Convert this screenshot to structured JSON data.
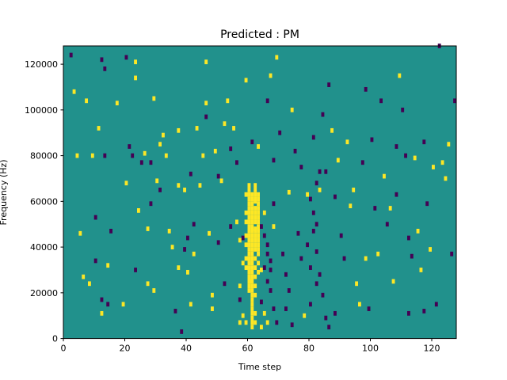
{
  "chart_data": {
    "type": "heatmap",
    "title": "Predicted : PM",
    "xlabel": "Time step",
    "ylabel": "Frequency (Hz)",
    "xlim": [
      0,
      128
    ],
    "ylim": [
      0,
      128000
    ],
    "x_ticks": [
      0,
      20,
      40,
      60,
      80,
      100,
      120
    ],
    "y_ticks": [
      0,
      20000,
      40000,
      60000,
      80000,
      100000,
      120000
    ],
    "grid": false,
    "legend": "none",
    "colors": {
      "background": "#21918c",
      "high": "#fde725",
      "low": "#440154"
    },
    "value_scale": {
      "low": -1,
      "background": 0,
      "high": 1
    },
    "cell_height_hz": 2000,
    "cells": [
      [
        2,
        123000,
        -1
      ],
      [
        3,
        107000,
        1
      ],
      [
        4,
        79000,
        1
      ],
      [
        5,
        45000,
        1
      ],
      [
        6,
        26000,
        1
      ],
      [
        7,
        103000,
        1
      ],
      [
        8,
        23000,
        1
      ],
      [
        9,
        79000,
        1
      ],
      [
        10,
        52000,
        -1
      ],
      [
        10,
        33000,
        -1
      ],
      [
        11,
        91000,
        1
      ],
      [
        12,
        121000,
        -1
      ],
      [
        13,
        117000,
        -1
      ],
      [
        12,
        16000,
        -1
      ],
      [
        12,
        10000,
        1
      ],
      [
        13,
        79000,
        -1
      ],
      [
        14,
        31000,
        1
      ],
      [
        14,
        14000,
        -1
      ],
      [
        15,
        46000,
        -1
      ],
      [
        17,
        102000,
        1
      ],
      [
        19,
        14000,
        1
      ],
      [
        20,
        122000,
        -1
      ],
      [
        20,
        67000,
        1
      ],
      [
        21,
        83000,
        -1
      ],
      [
        22,
        79000,
        -1
      ],
      [
        23,
        29000,
        -1
      ],
      [
        23,
        120000,
        1
      ],
      [
        23,
        113000,
        1
      ],
      [
        24,
        55000,
        1
      ],
      [
        25,
        76000,
        -1
      ],
      [
        26,
        80000,
        1
      ],
      [
        27,
        47000,
        1
      ],
      [
        27,
        23000,
        1
      ],
      [
        28,
        58000,
        -1
      ],
      [
        28,
        76000,
        -1
      ],
      [
        29,
        104000,
        1
      ],
      [
        29,
        20000,
        1
      ],
      [
        30,
        68000,
        1
      ],
      [
        31,
        64000,
        -1
      ],
      [
        31,
        84000,
        1
      ],
      [
        32,
        88000,
        1
      ],
      [
        33,
        79000,
        1
      ],
      [
        34,
        46000,
        1
      ],
      [
        35,
        39000,
        1
      ],
      [
        36,
        11000,
        -1
      ],
      [
        37,
        30000,
        1
      ],
      [
        37,
        66000,
        1
      ],
      [
        37,
        90000,
        1
      ],
      [
        38,
        2000,
        -1
      ],
      [
        39,
        64000,
        1
      ],
      [
        39,
        38000,
        -1
      ],
      [
        40,
        43000,
        -1
      ],
      [
        40,
        28000,
        1
      ],
      [
        41,
        71000,
        -1
      ],
      [
        41,
        14000,
        1
      ],
      [
        42,
        49000,
        -1
      ],
      [
        42,
        36000,
        1
      ],
      [
        43,
        91000,
        1
      ],
      [
        44,
        66000,
        1
      ],
      [
        45,
        79000,
        1
      ],
      [
        46,
        120000,
        1
      ],
      [
        46,
        102000,
        1
      ],
      [
        46,
        96000,
        -1
      ],
      [
        47,
        45000,
        1
      ],
      [
        48,
        18000,
        1
      ],
      [
        48,
        12000,
        1
      ],
      [
        49,
        81000,
        1
      ],
      [
        50,
        70000,
        -1
      ],
      [
        50,
        41000,
        -1
      ],
      [
        51,
        68000,
        1
      ],
      [
        52,
        93000,
        1
      ],
      [
        52,
        23000,
        -1
      ],
      [
        53,
        103000,
        1
      ],
      [
        54,
        82000,
        -1
      ],
      [
        54,
        48000,
        -1
      ],
      [
        55,
        91000,
        1
      ],
      [
        56,
        76000,
        -1
      ],
      [
        57,
        22000,
        1
      ],
      [
        57,
        16000,
        -1
      ],
      [
        58,
        43000,
        -1
      ],
      [
        59,
        112000,
        1
      ],
      [
        59,
        6000,
        1
      ],
      [
        60,
        24000,
        1
      ],
      [
        60,
        36000,
        -1
      ],
      [
        61,
        85000,
        -1
      ],
      [
        62,
        59000,
        1
      ],
      [
        62,
        47000,
        1
      ],
      [
        63,
        83000,
        1
      ],
      [
        63,
        38000,
        1
      ],
      [
        64,
        29000,
        1
      ],
      [
        64,
        15000,
        -1
      ],
      [
        65,
        54000,
        1
      ],
      [
        66,
        103000,
        -1
      ],
      [
        67,
        114000,
        1
      ],
      [
        67,
        29000,
        -1
      ],
      [
        68,
        77000,
        -1
      ],
      [
        68,
        58000,
        -1
      ],
      [
        68,
        48000,
        1
      ],
      [
        69,
        122000,
        1
      ],
      [
        70,
        89000,
        -1
      ],
      [
        71,
        36000,
        -1
      ],
      [
        72,
        27000,
        -1
      ],
      [
        72,
        12000,
        -1
      ],
      [
        73,
        63000,
        1
      ],
      [
        73,
        20000,
        -1
      ],
      [
        74,
        99000,
        1
      ],
      [
        74,
        5000,
        -1
      ],
      [
        75,
        81000,
        -1
      ],
      [
        76,
        45000,
        -1
      ],
      [
        77,
        74000,
        -1
      ],
      [
        77,
        34000,
        -1
      ],
      [
        78,
        9000,
        1
      ],
      [
        79,
        62000,
        1
      ],
      [
        80,
        14000,
        -1
      ],
      [
        81,
        87000,
        -1
      ],
      [
        82,
        49000,
        -1
      ],
      [
        82,
        23000,
        -1
      ],
      [
        83,
        64000,
        1
      ],
      [
        84,
        97000,
        -1
      ],
      [
        85,
        72000,
        -1
      ],
      [
        86,
        110000,
        -1
      ],
      [
        87,
        90000,
        1
      ],
      [
        88,
        61000,
        -1
      ],
      [
        88,
        10000,
        -1
      ],
      [
        89,
        77000,
        1
      ],
      [
        90,
        44000,
        -1
      ],
      [
        91,
        34000,
        -1
      ],
      [
        92,
        85000,
        1
      ],
      [
        93,
        57000,
        1
      ],
      [
        94,
        64000,
        1
      ],
      [
        95,
        23000,
        1
      ],
      [
        96,
        14000,
        1
      ],
      [
        97,
        76000,
        -1
      ],
      [
        98,
        108000,
        -1
      ],
      [
        98,
        34000,
        1
      ],
      [
        99,
        12000,
        -1
      ],
      [
        100,
        86000,
        -1
      ],
      [
        101,
        56000,
        -1
      ],
      [
        102,
        36000,
        1
      ],
      [
        103,
        103000,
        -1
      ],
      [
        104,
        70000,
        1
      ],
      [
        105,
        49000,
        -1
      ],
      [
        106,
        56000,
        1
      ],
      [
        107,
        24000,
        1
      ],
      [
        108,
        83000,
        -1
      ],
      [
        108,
        62000,
        -1
      ],
      [
        109,
        114000,
        1
      ],
      [
        110,
        99000,
        -1
      ],
      [
        111,
        79000,
        -1
      ],
      [
        112,
        43000,
        -1
      ],
      [
        112,
        10000,
        -1
      ],
      [
        113,
        35000,
        -1
      ],
      [
        114,
        78000,
        1
      ],
      [
        115,
        46000,
        1
      ],
      [
        116,
        29000,
        1
      ],
      [
        117,
        85000,
        -1
      ],
      [
        117,
        11000,
        -1
      ],
      [
        118,
        58000,
        -1
      ],
      [
        119,
        38000,
        1
      ],
      [
        120,
        74000,
        1
      ],
      [
        121,
        14000,
        -1
      ],
      [
        122,
        127000,
        -1
      ],
      [
        123,
        76000,
        1
      ],
      [
        124,
        69000,
        1
      ],
      [
        125,
        84000,
        1
      ],
      [
        126,
        36000,
        -1
      ],
      [
        127,
        103000,
        -1
      ],
      [
        60,
        66000,
        1
      ],
      [
        60,
        64000,
        1
      ],
      [
        60,
        62000,
        1
      ],
      [
        60,
        60000,
        1
      ],
      [
        60,
        58000,
        1
      ],
      [
        60,
        56000,
        1
      ],
      [
        60,
        54000,
        1
      ],
      [
        60,
        52000,
        1
      ],
      [
        60,
        50000,
        1
      ],
      [
        60,
        48000,
        1
      ],
      [
        60,
        46000,
        1
      ],
      [
        60,
        44000,
        1
      ],
      [
        60,
        42000,
        1
      ],
      [
        60,
        40000,
        1
      ],
      [
        60,
        38000,
        1
      ],
      [
        60,
        36000,
        1
      ],
      [
        60,
        34000,
        1
      ],
      [
        60,
        32000,
        1
      ],
      [
        60,
        30000,
        1
      ],
      [
        60,
        28000,
        1
      ],
      [
        60,
        26000,
        1
      ],
      [
        60,
        24000,
        1
      ],
      [
        60,
        22000,
        1
      ],
      [
        60,
        20000,
        1
      ],
      [
        61,
        62000,
        1
      ],
      [
        61,
        60000,
        1
      ],
      [
        61,
        58000,
        1
      ],
      [
        61,
        56000,
        1
      ],
      [
        61,
        54000,
        1
      ],
      [
        61,
        52000,
        1
      ],
      [
        61,
        50000,
        1
      ],
      [
        61,
        48000,
        1
      ],
      [
        61,
        46000,
        1
      ],
      [
        61,
        44000,
        1
      ],
      [
        61,
        42000,
        1
      ],
      [
        61,
        40000,
        1
      ],
      [
        61,
        38000,
        1
      ],
      [
        61,
        36000,
        1
      ],
      [
        61,
        34000,
        1
      ],
      [
        61,
        32000,
        1
      ],
      [
        61,
        30000,
        1
      ],
      [
        61,
        28000,
        1
      ],
      [
        61,
        26000,
        1
      ],
      [
        61,
        24000,
        1
      ],
      [
        61,
        22000,
        1
      ],
      [
        61,
        20000,
        1
      ],
      [
        61,
        18000,
        1
      ],
      [
        61,
        16000,
        1
      ],
      [
        61,
        14000,
        1
      ],
      [
        61,
        12000,
        1
      ],
      [
        61,
        10000,
        1
      ],
      [
        61,
        8000,
        1
      ],
      [
        61,
        6000,
        1
      ],
      [
        61,
        4000,
        1
      ],
      [
        62,
        66000,
        1
      ],
      [
        62,
        64000,
        1
      ],
      [
        62,
        62000,
        1
      ],
      [
        62,
        60000,
        1
      ],
      [
        62,
        56000,
        1
      ],
      [
        62,
        54000,
        1
      ],
      [
        62,
        52000,
        1
      ],
      [
        62,
        50000,
        1
      ],
      [
        62,
        46000,
        1
      ],
      [
        62,
        44000,
        1
      ],
      [
        62,
        42000,
        1
      ],
      [
        62,
        40000,
        1
      ],
      [
        62,
        38000,
        1
      ],
      [
        62,
        34000,
        1
      ],
      [
        62,
        30000,
        1
      ],
      [
        62,
        26000,
        1
      ],
      [
        62,
        22000,
        1
      ],
      [
        62,
        18000,
        1
      ],
      [
        62,
        10000,
        1
      ],
      [
        62,
        6000,
        1
      ],
      [
        63,
        62000,
        1
      ],
      [
        63,
        60000,
        1
      ],
      [
        63,
        58000,
        1
      ],
      [
        63,
        56000,
        1
      ],
      [
        63,
        54000,
        1
      ],
      [
        63,
        52000,
        1
      ],
      [
        63,
        50000,
        1
      ],
      [
        63,
        48000,
        1
      ],
      [
        63,
        46000,
        1
      ],
      [
        63,
        44000,
        1
      ],
      [
        63,
        42000,
        1
      ],
      [
        63,
        40000,
        1
      ],
      [
        63,
        36000,
        1
      ],
      [
        63,
        32000,
        1
      ],
      [
        63,
        28000,
        1
      ],
      [
        59,
        62000,
        1
      ],
      [
        59,
        54000,
        1
      ],
      [
        59,
        50000,
        1
      ],
      [
        59,
        44000,
        1
      ],
      [
        59,
        40000,
        1
      ],
      [
        59,
        34000,
        1
      ],
      [
        59,
        30000,
        1
      ],
      [
        56,
        50000,
        1
      ],
      [
        57,
        42000,
        1
      ],
      [
        58,
        32000,
        1
      ],
      [
        57,
        6000,
        1
      ],
      [
        58,
        9000,
        1
      ],
      [
        64,
        48000,
        -1
      ],
      [
        65,
        44000,
        -1
      ],
      [
        66,
        40000,
        -1
      ],
      [
        66,
        36000,
        -1
      ],
      [
        67,
        33000,
        -1
      ],
      [
        65,
        30000,
        -1
      ],
      [
        66,
        24000,
        -1
      ],
      [
        67,
        20000,
        -1
      ],
      [
        68,
        12000,
        -1
      ],
      [
        69,
        6000,
        -1
      ],
      [
        65,
        10000,
        1
      ],
      [
        66,
        6000,
        1
      ],
      [
        64,
        4000,
        1
      ],
      [
        79,
        40000,
        -1
      ],
      [
        80,
        30000,
        -1
      ],
      [
        81,
        46000,
        -1
      ],
      [
        82,
        37000,
        -1
      ],
      [
        83,
        27000,
        -1
      ],
      [
        84,
        18000,
        -1
      ],
      [
        85,
        8000,
        -1
      ],
      [
        86,
        4000,
        -1
      ],
      [
        80,
        60000,
        -1
      ],
      [
        81,
        54000,
        -1
      ],
      [
        82,
        67000,
        -1
      ],
      [
        83,
        72000,
        -1
      ]
    ]
  }
}
